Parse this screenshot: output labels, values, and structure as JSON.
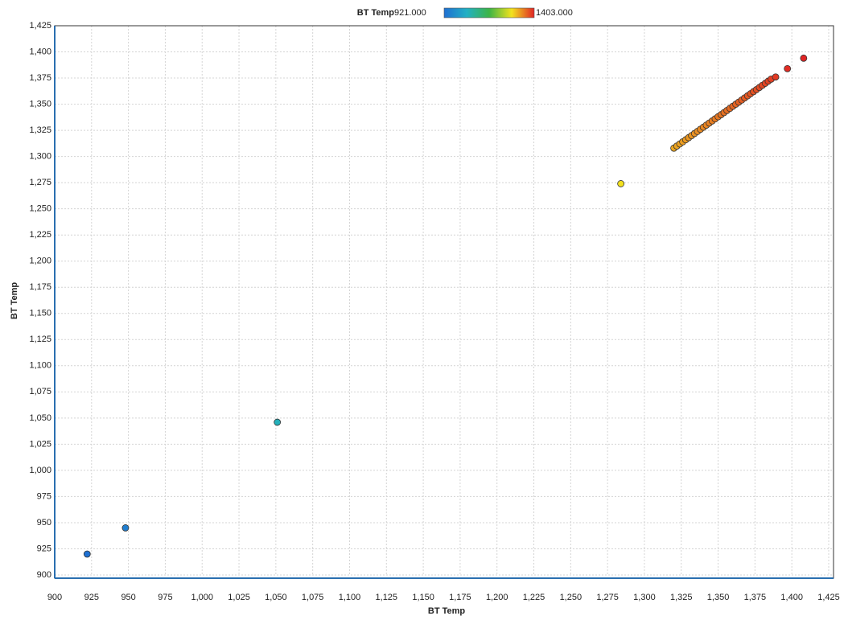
{
  "chart_data": {
    "type": "scatter",
    "x_label": "BT Temp",
    "y_label": "BT Temp",
    "colorbar": {
      "title": "BT Temp",
      "min": {
        "value": 921,
        "label": "921.000"
      },
      "max": {
        "value": 1403,
        "label": "1403.000"
      },
      "colors": [
        "#1f6fd2",
        "#22b0c4",
        "#3cb446",
        "#f2e21e",
        "#e02424"
      ]
    },
    "x": [
      922,
      948,
      1051,
      1284,
      1320,
      1322,
      1324,
      1326,
      1328,
      1330,
      1332,
      1334,
      1336,
      1338,
      1340,
      1342,
      1344,
      1346,
      1348,
      1350,
      1352,
      1354,
      1356,
      1358,
      1360,
      1362,
      1364,
      1366,
      1368,
      1370,
      1372,
      1374,
      1376,
      1378,
      1380,
      1382,
      1384,
      1386,
      1389,
      1397,
      1408
    ],
    "y": [
      920,
      945,
      1046,
      1274,
      1308,
      1310,
      1312,
      1314,
      1316,
      1318,
      1320,
      1322,
      1324,
      1326,
      1328,
      1330,
      1332,
      1334,
      1336,
      1338,
      1340,
      1342,
      1344,
      1346,
      1348,
      1350,
      1352,
      1354,
      1356,
      1358,
      1360,
      1362,
      1364,
      1366,
      1368,
      1370,
      1372,
      1374,
      1376,
      1384,
      1394
    ],
    "xlim": [
      900,
      1425
    ],
    "ylim": [
      900,
      1425
    ],
    "xticks": [
      900,
      925,
      950,
      975,
      {
        "value": 1000,
        "label": "1,000"
      },
      {
        "value": 1025,
        "label": "1,025"
      },
      {
        "value": 1050,
        "label": "1,050"
      },
      {
        "value": 1075,
        "label": "1,075"
      },
      {
        "value": 1100,
        "label": "1,100"
      },
      {
        "value": 1125,
        "label": "1,125"
      },
      {
        "value": 1150,
        "label": "1,150"
      },
      {
        "value": 1175,
        "label": "1,175"
      },
      {
        "value": 1200,
        "label": "1,200"
      },
      {
        "value": 1225,
        "label": "1,225"
      },
      {
        "value": 1250,
        "label": "1,250"
      },
      {
        "value": 1275,
        "label": "1,275"
      },
      {
        "value": 1300,
        "label": "1,300"
      },
      {
        "value": 1325,
        "label": "1,325"
      },
      {
        "value": 1350,
        "label": "1,350"
      },
      {
        "value": 1375,
        "label": "1,375"
      },
      {
        "value": 1400,
        "label": "1,400"
      },
      {
        "value": 1425,
        "label": "1,425"
      }
    ],
    "yticks": [
      900,
      925,
      950,
      975,
      {
        "value": 1000,
        "label": "1,000"
      },
      {
        "value": 1025,
        "label": "1,025"
      },
      {
        "value": 1050,
        "label": "1,050"
      },
      {
        "value": 1075,
        "label": "1,075"
      },
      {
        "value": 1100,
        "label": "1,100"
      },
      {
        "value": 1125,
        "label": "1,125"
      },
      {
        "value": 1150,
        "label": "1,150"
      },
      {
        "value": 1175,
        "label": "1,175"
      },
      {
        "value": 1200,
        "label": "1,200"
      },
      {
        "value": 1225,
        "label": "1,225"
      },
      {
        "value": 1250,
        "label": "1,250"
      },
      {
        "value": 1275,
        "label": "1,275"
      },
      {
        "value": 1300,
        "label": "1,300"
      },
      {
        "value": 1325,
        "label": "1,325"
      },
      {
        "value": 1350,
        "label": "1,350"
      },
      {
        "value": 1375,
        "label": "1,375"
      },
      {
        "value": 1400,
        "label": "1,400"
      },
      {
        "value": 1425,
        "label": "1,425"
      }
    ],
    "grid": true
  }
}
